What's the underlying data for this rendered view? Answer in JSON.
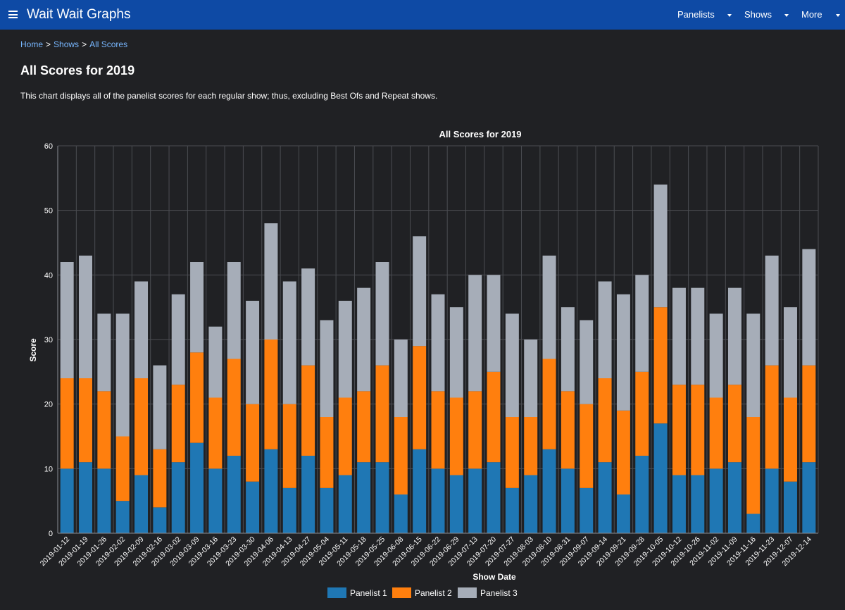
{
  "app": {
    "brand": "Wait Wait Graphs",
    "menu": [
      "Panelists",
      "Shows",
      "More"
    ]
  },
  "breadcrumb": [
    "Home",
    "Shows",
    "All Scores"
  ],
  "page": {
    "title": "All Scores for 2019",
    "description": "This chart displays all of the panelist scores for each regular show; thus, excluding Best Ofs and Repeat shows."
  },
  "colors": {
    "background": "#202124",
    "navbar": "#0e4aa5",
    "link": "#78b7ff",
    "panelist1": "#1f77b4",
    "panelist2": "#ff7f0e",
    "panelist3": "#a6adb8"
  },
  "chart_data": {
    "type": "bar",
    "stacked": true,
    "title": "All Scores for 2019",
    "xlabel": "Show Date",
    "ylabel": "Score",
    "ylim": [
      0,
      60
    ],
    "yticks": [
      0,
      10,
      20,
      30,
      40,
      50,
      60
    ],
    "grid": true,
    "legend": "bottom",
    "categories": [
      "2019-01-12",
      "2019-01-19",
      "2019-01-26",
      "2019-02-02",
      "2019-02-09",
      "2019-02-16",
      "2019-03-02",
      "2019-03-09",
      "2019-03-16",
      "2019-03-23",
      "2019-03-30",
      "2019-04-06",
      "2019-04-13",
      "2019-04-27",
      "2019-05-04",
      "2019-05-11",
      "2019-05-18",
      "2019-05-25",
      "2019-06-08",
      "2019-06-15",
      "2019-06-22",
      "2019-06-29",
      "2019-07-13",
      "2019-07-20",
      "2019-07-27",
      "2019-08-03",
      "2019-08-10",
      "2019-08-31",
      "2019-09-07",
      "2019-09-14",
      "2019-09-21",
      "2019-09-28",
      "2019-10-05",
      "2019-10-12",
      "2019-10-26",
      "2019-11-02",
      "2019-11-09",
      "2019-11-16",
      "2019-11-23",
      "2019-12-07",
      "2019-12-14"
    ],
    "series": [
      {
        "name": "Panelist 1",
        "values": [
          10,
          11,
          10,
          5,
          9,
          4,
          11,
          14,
          10,
          12,
          8,
          13,
          7,
          12,
          7,
          9,
          11,
          11,
          6,
          13,
          10,
          9,
          10,
          11,
          7,
          9,
          13,
          10,
          7,
          11,
          6,
          12,
          17,
          9,
          9,
          10,
          11,
          3,
          10,
          8,
          11
        ]
      },
      {
        "name": "Panelist 2",
        "values": [
          14,
          13,
          12,
          10,
          15,
          9,
          12,
          14,
          11,
          15,
          12,
          17,
          13,
          14,
          11,
          12,
          11,
          15,
          12,
          16,
          12,
          12,
          12,
          14,
          11,
          9,
          14,
          12,
          13,
          13,
          13,
          13,
          18,
          14,
          14,
          11,
          12,
          15,
          16,
          13,
          15
        ]
      },
      {
        "name": "Panelist 3",
        "values": [
          18,
          19,
          12,
          19,
          15,
          13,
          14,
          14,
          11,
          15,
          16,
          18,
          19,
          15,
          15,
          15,
          16,
          16,
          12,
          17,
          15,
          14,
          18,
          15,
          16,
          12,
          16,
          13,
          13,
          15,
          18,
          15,
          19,
          15,
          15,
          13,
          15,
          16,
          17,
          14,
          18
        ]
      }
    ]
  }
}
